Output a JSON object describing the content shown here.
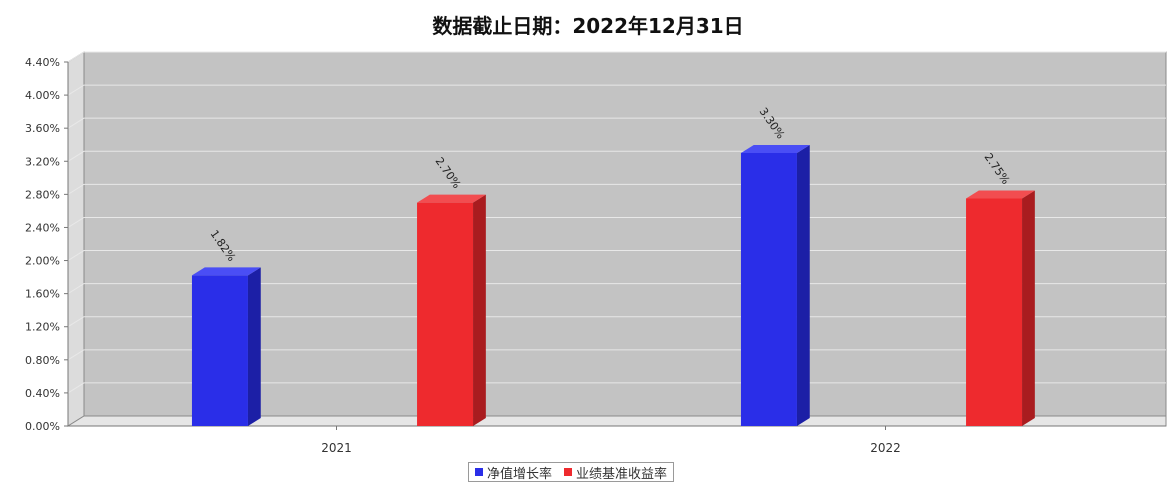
{
  "chart_data": {
    "type": "bar",
    "title": "数据截止日期：2022年12月31日",
    "categories": [
      "2021",
      "2022"
    ],
    "series": [
      {
        "name": "净值增长率",
        "values": [
          1.82,
          3.3
        ],
        "labels": [
          "1.82%",
          "3.30%"
        ],
        "color": "#2a2ee8",
        "side_color": "#1c1fa6",
        "top_color": "#4a4ef5"
      },
      {
        "name": "业绩基准收益率",
        "values": [
          2.7,
          2.75
        ],
        "labels": [
          "2.70%",
          "2.75%"
        ],
        "color": "#ee2a2e",
        "side_color": "#a91c1f",
        "top_color": "#f24d50"
      }
    ],
    "yticks": [
      "0.00%",
      "0.40%",
      "0.80%",
      "1.20%",
      "1.60%",
      "2.00%",
      "2.40%",
      "2.80%",
      "3.20%",
      "3.60%",
      "4.00%",
      "4.40%"
    ],
    "ylim": [
      0,
      4.4
    ],
    "ytick_step": 0.4,
    "grid": true,
    "legend_position": "bottom-center",
    "xlabel": "",
    "ylabel": ""
  }
}
